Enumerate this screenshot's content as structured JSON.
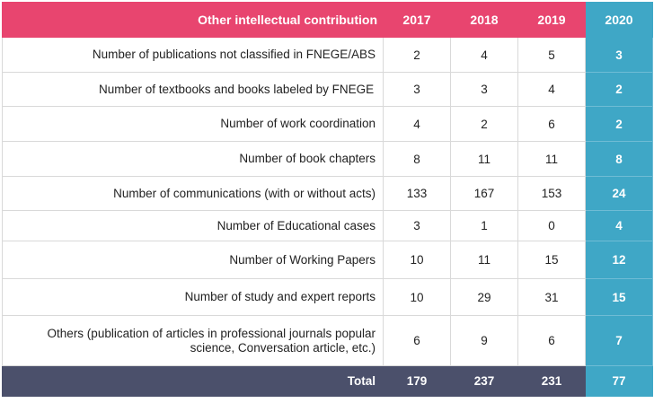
{
  "table": {
    "header": {
      "label": "Other intellectual contribution",
      "years": [
        "2017",
        "2018",
        "2019",
        "2020"
      ]
    },
    "rows": [
      {
        "label": "Number of publications not classified in  FNEGE/ABS",
        "values": [
          "2",
          "4",
          "5",
          "3"
        ]
      },
      {
        "label": "Number of textbooks and books labeled by FNEGE",
        "values": [
          "3",
          "3",
          "4",
          "2"
        ]
      },
      {
        "label": "Number of work coordination",
        "values": [
          "4",
          "2",
          "6",
          "2"
        ]
      },
      {
        "label": "Number of book chapters",
        "values": [
          "8",
          "11",
          "11",
          "8"
        ]
      },
      {
        "label": "Number of communications (with or without acts)",
        "values": [
          "133",
          "167",
          "153",
          "24"
        ]
      },
      {
        "label": "Number of Educational cases",
        "values": [
          "3",
          "1",
          "0",
          "4"
        ]
      },
      {
        "label": "Number of Working Papers",
        "values": [
          "10",
          "11",
          "15",
          "12"
        ]
      },
      {
        "label": "Number of study and expert reports",
        "values": [
          "10",
          "29",
          "31",
          "15"
        ]
      },
      {
        "label": "Others (publication of articles in professional journals popular science, Conversation article, etc.)",
        "values": [
          "6",
          "9",
          "6",
          "7"
        ]
      }
    ],
    "total": {
      "label": "Total",
      "values": [
        "179",
        "237",
        "231",
        "77"
      ]
    }
  },
  "colors": {
    "header_pink": "#e8456f",
    "highlight_blue": "#3fa7c6",
    "total_slate": "#4b506b"
  }
}
